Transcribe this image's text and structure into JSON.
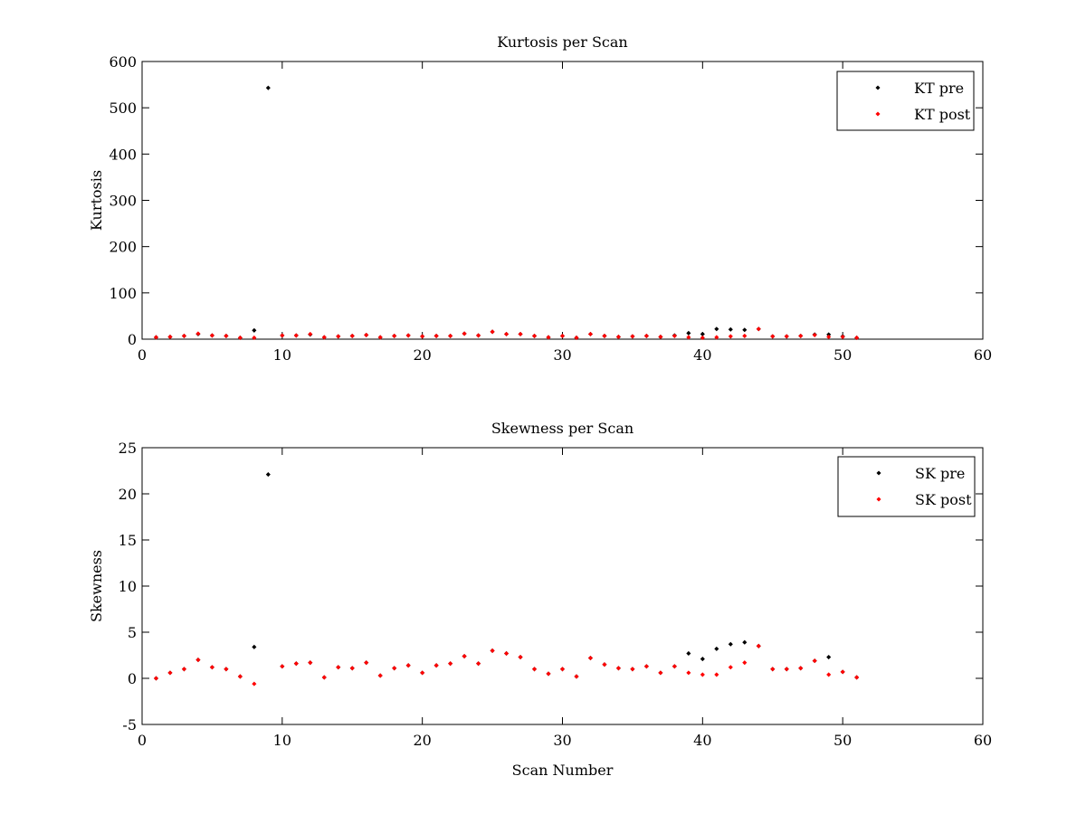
{
  "chart_data": [
    {
      "type": "scatter",
      "title": "Kurtosis per Scan",
      "xlabel": "",
      "ylabel": "Kurtosis",
      "xlim": [
        0,
        60
      ],
      "ylim": [
        0,
        600
      ],
      "xticks": [
        "0",
        "10",
        "20",
        "30",
        "40",
        "50",
        "60"
      ],
      "yticks": [
        "0",
        "100",
        "200",
        "300",
        "400",
        "500",
        "600"
      ],
      "grid": false,
      "legend": "top-right",
      "series": [
        {
          "name": "KT pre",
          "color": "#000000",
          "x": [
            1,
            2,
            3,
            4,
            5,
            6,
            7,
            8,
            9,
            10,
            11,
            12,
            13,
            14,
            15,
            16,
            17,
            18,
            19,
            20,
            21,
            22,
            23,
            24,
            25,
            26,
            27,
            28,
            29,
            30,
            31,
            32,
            33,
            34,
            35,
            36,
            37,
            38,
            39,
            40,
            41,
            42,
            43,
            44,
            45,
            46,
            47,
            48,
            49,
            50,
            51
          ],
          "y": [
            4,
            5,
            7,
            11,
            8,
            7,
            3,
            19,
            543,
            8,
            8,
            10,
            4,
            6,
            7,
            9,
            4,
            7,
            8,
            6,
            7,
            7,
            12,
            8,
            16,
            11,
            11,
            7,
            4,
            7,
            3,
            11,
            7,
            5,
            6,
            7,
            5,
            8,
            13,
            11,
            22,
            21,
            20,
            22,
            6,
            6,
            7,
            10,
            10,
            6,
            3
          ]
        },
        {
          "name": "KT post",
          "color": "#ff0000",
          "x": [
            1,
            2,
            3,
            4,
            5,
            6,
            7,
            8,
            10,
            11,
            12,
            13,
            14,
            15,
            16,
            17,
            18,
            19,
            20,
            21,
            22,
            23,
            24,
            25,
            26,
            27,
            28,
            29,
            30,
            31,
            32,
            33,
            34,
            35,
            36,
            37,
            38,
            39,
            40,
            41,
            42,
            43,
            44,
            45,
            46,
            47,
            48,
            49,
            50,
            51
          ],
          "y": [
            4,
            5,
            7,
            12,
            8,
            7,
            3,
            3,
            8,
            8,
            11,
            4,
            6,
            7,
            9,
            4,
            7,
            8,
            6,
            7,
            7,
            12,
            8,
            16,
            11,
            11,
            7,
            4,
            7,
            3,
            11,
            7,
            5,
            6,
            7,
            5,
            7,
            4,
            3,
            4,
            6,
            7,
            22,
            6,
            6,
            7,
            9,
            5,
            5,
            3
          ]
        }
      ]
    },
    {
      "type": "scatter",
      "title": "Skewness per Scan",
      "xlabel": "Scan Number",
      "ylabel": "Skewness",
      "xlim": [
        0,
        60
      ],
      "ylim": [
        -5,
        25
      ],
      "xticks": [
        "0",
        "10",
        "20",
        "30",
        "40",
        "50",
        "60"
      ],
      "yticks": [
        "-5",
        "0",
        "5",
        "10",
        "15",
        "20",
        "25"
      ],
      "grid": false,
      "legend": "top-right",
      "series": [
        {
          "name": "SK pre",
          "color": "#000000",
          "x": [
            1,
            2,
            3,
            4,
            5,
            6,
            7,
            8,
            9,
            10,
            11,
            12,
            13,
            14,
            15,
            16,
            17,
            18,
            19,
            20,
            21,
            22,
            23,
            24,
            25,
            26,
            27,
            28,
            29,
            30,
            31,
            32,
            33,
            34,
            35,
            36,
            37,
            38,
            39,
            40,
            41,
            42,
            43,
            44,
            45,
            46,
            47,
            48,
            49,
            50,
            51
          ],
          "y": [
            0,
            0.6,
            1.0,
            2.0,
            1.2,
            1.0,
            0.2,
            3.4,
            22.1,
            1.3,
            1.6,
            1.7,
            0.1,
            1.2,
            1.1,
            1.7,
            0.3,
            1.1,
            1.4,
            0.6,
            1.4,
            1.6,
            2.4,
            1.6,
            3.0,
            2.7,
            2.3,
            1.0,
            0.5,
            1.0,
            0.2,
            2.2,
            1.5,
            1.1,
            1.0,
            1.3,
            0.6,
            1.3,
            2.7,
            2.1,
            3.2,
            3.7,
            3.9,
            3.5,
            1.0,
            1.0,
            1.1,
            1.9,
            2.3,
            0.7,
            0.1
          ]
        },
        {
          "name": "SK post",
          "color": "#ff0000",
          "x": [
            1,
            2,
            3,
            4,
            5,
            6,
            7,
            8,
            10,
            11,
            12,
            13,
            14,
            15,
            16,
            17,
            18,
            19,
            20,
            21,
            22,
            23,
            24,
            25,
            26,
            27,
            28,
            29,
            30,
            31,
            32,
            33,
            34,
            35,
            36,
            37,
            38,
            39,
            40,
            41,
            42,
            43,
            44,
            45,
            46,
            47,
            48,
            49,
            50,
            51
          ],
          "y": [
            0,
            0.6,
            1.0,
            2.0,
            1.2,
            1.0,
            0.2,
            -0.6,
            1.3,
            1.6,
            1.7,
            0.1,
            1.2,
            1.1,
            1.7,
            0.3,
            1.1,
            1.4,
            0.6,
            1.4,
            1.6,
            2.4,
            1.6,
            3.0,
            2.7,
            2.3,
            1.0,
            0.5,
            1.0,
            0.2,
            2.2,
            1.5,
            1.1,
            1.0,
            1.3,
            0.6,
            1.3,
            0.6,
            0.4,
            0.4,
            1.2,
            1.7,
            3.5,
            1.0,
            1.0,
            1.1,
            1.9,
            0.4,
            0.7,
            0.1
          ]
        }
      ]
    }
  ]
}
